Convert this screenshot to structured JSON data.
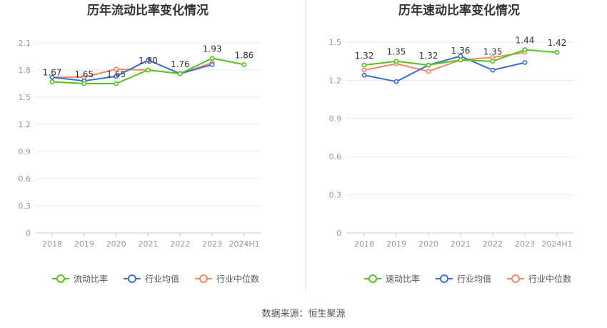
{
  "colors": {
    "primary": "#52c41a",
    "industry_avg": "#3b6fd8",
    "industry_median": "#f08a5d",
    "grid": "#e8e8e8",
    "axis_text": "#999999",
    "title": "#333333"
  },
  "chart_data": [
    {
      "type": "line",
      "title": "历年流动比率变化情况",
      "categories": [
        "2018",
        "2019",
        "2020",
        "2021",
        "2022",
        "2023",
        "2024H1"
      ],
      "ylim": [
        0,
        2.1
      ],
      "yticks": [
        "0",
        "0.3",
        "0.6",
        "0.9",
        "1.2",
        "1.5",
        "1.8",
        "2.1"
      ],
      "grid": true,
      "legend_position": "bottom",
      "series": [
        {
          "name": "流动比率",
          "color": "#52c41a",
          "labeled": true,
          "values": [
            1.67,
            1.65,
            1.65,
            1.8,
            1.76,
            1.93,
            1.86
          ],
          "labels": [
            "1.67",
            "1.65",
            "1.65",
            "1.80",
            "1.76",
            "1.93",
            "1.86"
          ]
        },
        {
          "name": "行业均值",
          "color": "#3b6fd8",
          "values": [
            1.72,
            1.68,
            1.73,
            1.91,
            1.76,
            1.86,
            null
          ]
        },
        {
          "name": "行业中位数",
          "color": "#f08a5d",
          "values": [
            1.72,
            1.72,
            1.81,
            1.8,
            1.76,
            1.88,
            null
          ]
        }
      ]
    },
    {
      "type": "line",
      "title": "历年速动比率变化情况",
      "categories": [
        "2018",
        "2019",
        "2020",
        "2021",
        "2022",
        "2023",
        "2024H1"
      ],
      "ylim": [
        0,
        1.5
      ],
      "yticks": [
        "0",
        "0.3",
        "0.6",
        "0.9",
        "1.2",
        "1.5"
      ],
      "grid": true,
      "legend_position": "bottom",
      "series": [
        {
          "name": "速动比率",
          "color": "#52c41a",
          "labeled": true,
          "values": [
            1.32,
            1.35,
            1.32,
            1.36,
            1.35,
            1.44,
            1.42
          ],
          "labels": [
            "1.32",
            "1.35",
            "1.32",
            "1.36",
            "1.35",
            "1.44",
            "1.42"
          ]
        },
        {
          "name": "行业均值",
          "color": "#3b6fd8",
          "values": [
            1.24,
            1.19,
            1.32,
            1.39,
            1.28,
            1.34,
            null
          ]
        },
        {
          "name": "行业中位数",
          "color": "#f08a5d",
          "values": [
            1.28,
            1.33,
            1.27,
            1.36,
            1.38,
            1.42,
            null
          ]
        }
      ]
    }
  ],
  "source_text": "数据来源：恒生聚源"
}
